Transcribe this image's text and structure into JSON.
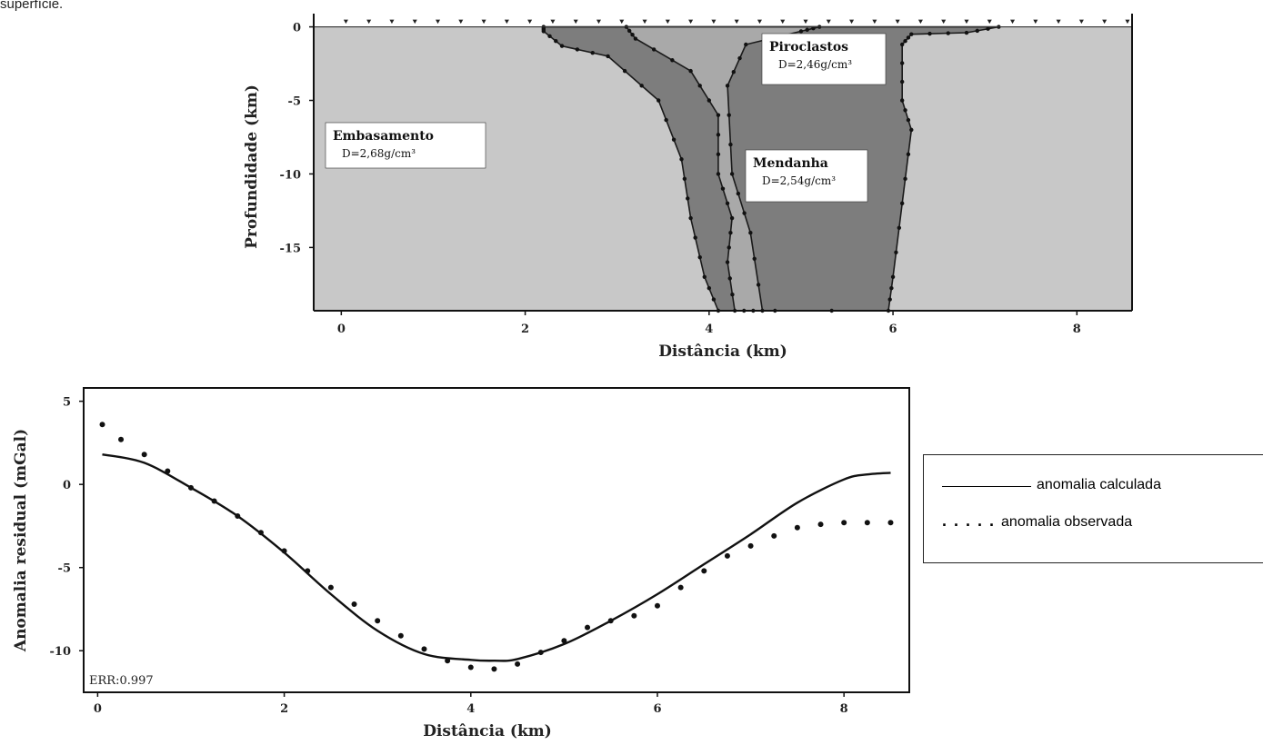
{
  "caption_fragment": "superfície.",
  "chart_data": [
    {
      "type": "area",
      "xlabel": "Distância (km)",
      "ylabel": "Profundidade (km)",
      "xlim": [
        -0.3,
        8.6
      ],
      "ylim": [
        -19.3,
        0.9
      ],
      "xticks": [
        0,
        2,
        4,
        6,
        8
      ],
      "yticks": [
        0,
        -5,
        -10,
        -15
      ],
      "units": [
        {
          "name": "Embasamento",
          "density": "D=2,68g/cm³",
          "color": "#c8c8c8"
        },
        {
          "name": "Piroclastos",
          "density": "D=2,46g/cm³",
          "color": "#a9a9a9"
        },
        {
          "name": "Mendanha",
          "density": "D=2,54g/cm³",
          "color": "#7d7d7d"
        }
      ],
      "stations_x": [
        0.05,
        0.3,
        0.55,
        0.8,
        1.05,
        1.3,
        1.55,
        1.8,
        2.05,
        2.3,
        2.55,
        2.8,
        3.05,
        3.3,
        3.55,
        3.8,
        4.05,
        4.3,
        4.55,
        4.8,
        5.05,
        5.3,
        5.55,
        5.8,
        6.05,
        6.3,
        6.55,
        6.8,
        7.05,
        7.3,
        7.55,
        7.8,
        8.05,
        8.3,
        8.55
      ],
      "outer_body": [
        [
          2.2,
          0
        ],
        [
          7.15,
          0
        ],
        [
          6.8,
          -0.4
        ],
        [
          6.2,
          -0.5
        ],
        [
          6.1,
          -1.2
        ],
        [
          6.1,
          -5
        ],
        [
          6.2,
          -7
        ],
        [
          6.1,
          -12
        ],
        [
          6.0,
          -17
        ],
        [
          5.95,
          -19.3
        ],
        [
          4.1,
          -19.3
        ],
        [
          3.95,
          -17
        ],
        [
          3.8,
          -13
        ],
        [
          3.7,
          -9
        ],
        [
          3.45,
          -5
        ],
        [
          2.9,
          -2
        ],
        [
          2.4,
          -1.3
        ],
        [
          2.2,
          -0.3
        ]
      ],
      "pyroclast_body": [
        [
          3.1,
          0
        ],
        [
          5.2,
          0
        ],
        [
          5.0,
          -0.3
        ],
        [
          4.4,
          -1.2
        ],
        [
          4.2,
          -4
        ],
        [
          4.25,
          -10
        ],
        [
          4.45,
          -14
        ],
        [
          4.58,
          -19.3
        ],
        [
          4.28,
          -19.3
        ],
        [
          4.2,
          -16
        ],
        [
          4.25,
          -13
        ],
        [
          4.1,
          -10
        ],
        [
          4.1,
          -6
        ],
        [
          3.8,
          -3
        ],
        [
          3.2,
          -0.8
        ]
      ]
    },
    {
      "type": "line",
      "xlabel": "Distância (km)",
      "ylabel": "Anomalia residual (mGal)",
      "xlim": [
        -0.15,
        8.7
      ],
      "ylim": [
        -12.5,
        5.8
      ],
      "xticks": [
        0,
        2,
        4,
        6,
        8
      ],
      "yticks": [
        5,
        0,
        -5,
        -10
      ],
      "annotation": "ERR:0.997",
      "series": [
        {
          "name": "anomalia calculada",
          "style": "line",
          "x": [
            0.05,
            0.5,
            1.0,
            1.5,
            2.0,
            2.5,
            3.0,
            3.5,
            4.0,
            4.25,
            4.5,
            5.0,
            5.5,
            6.0,
            6.5,
            7.0,
            7.5,
            8.0,
            8.25,
            8.5
          ],
          "values": [
            1.8,
            1.3,
            -0.2,
            -1.9,
            -4.1,
            -6.6,
            -8.8,
            -10.2,
            -10.55,
            -10.6,
            -10.5,
            -9.6,
            -8.2,
            -6.6,
            -4.8,
            -3.0,
            -1.1,
            0.3,
            0.6,
            0.7
          ]
        },
        {
          "name": "anomalia observada",
          "style": "dots",
          "x": [
            0.05,
            0.25,
            0.5,
            0.75,
            1.0,
            1.25,
            1.5,
            1.75,
            2.0,
            2.25,
            2.5,
            2.75,
            3.0,
            3.25,
            3.5,
            3.75,
            4.0,
            4.25,
            4.5,
            4.75,
            5.0,
            5.25,
            5.5,
            5.75,
            6.0,
            6.25,
            6.5,
            6.75,
            7.0,
            7.25,
            7.5,
            7.75,
            8.0,
            8.25,
            8.5
          ],
          "values": [
            3.6,
            2.7,
            1.8,
            0.8,
            -0.2,
            -1.0,
            -1.9,
            -2.9,
            -4.0,
            -5.2,
            -6.2,
            -7.2,
            -8.2,
            -9.1,
            -9.9,
            -10.6,
            -11.0,
            -11.1,
            -10.8,
            -10.1,
            -9.4,
            -8.6,
            -8.2,
            -7.9,
            -7.3,
            -6.2,
            -5.2,
            -4.3,
            -3.7,
            -3.1,
            -2.6,
            -2.4,
            -2.3,
            -2.3,
            -2.3
          ]
        }
      ]
    }
  ],
  "legend": {
    "calc_label": "anomalia calculada",
    "obs_label": "anomalia observada",
    "obs_marker": "....."
  }
}
